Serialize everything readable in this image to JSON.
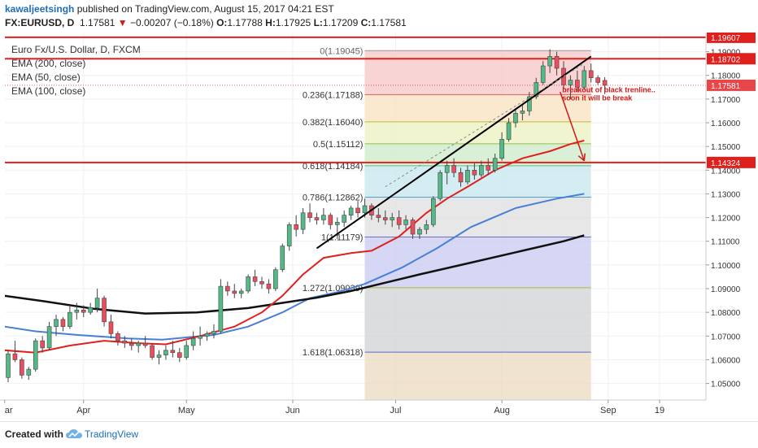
{
  "header": {
    "user": "kawaljeetsingh",
    "published_text": "published on TradingView.com, August 15, 2017 04:21 EST",
    "symbol": "FX:EURUSD, D",
    "last": "1.17581",
    "change_arrow": "▼",
    "change": "−0.00207 (−0.18%)",
    "o_label": "O:",
    "o_value": "1.17788",
    "h_label": "H:",
    "h_value": "1.17925",
    "l_label": "L:",
    "l_value": "1.17209",
    "c_label": "C:",
    "c_value": "1.17581"
  },
  "legend": {
    "title": "Euro Fx/U.S. Dollar, D, FXCM",
    "ema200": "EMA (200, close)",
    "ema50": "EMA (50, close)",
    "ema100": "EMA (100, close)"
  },
  "footer": {
    "created_with": "Created with",
    "brand": "TradingView",
    "logo_icon": "tradingview-cloud-icon"
  },
  "colors": {
    "candle_up": "#53b987",
    "candle_down": "#eb4d5c",
    "hline": "#e0201c",
    "ema_red": "#e0201c",
    "ema_blue": "#4a7fd6",
    "ema_black": "#111111",
    "annotation": "#d01919"
  },
  "chart_data": {
    "type": "candlestick",
    "title": "Euro Fx/U.S. Dollar, D, FXCM",
    "y_range": [
      1.043,
      1.195
    ],
    "y_ticks": [
      "1.19000",
      "1.18000",
      "1.17000",
      "1.16000",
      "1.15000",
      "1.14000",
      "1.13000",
      "1.12000",
      "1.11000",
      "1.10000",
      "1.09000",
      "1.08000",
      "1.07000",
      "1.06000",
      "1.05000"
    ],
    "x_labels": [
      {
        "label": "ar",
        "day": -1
      },
      {
        "label": "Apr",
        "day": 22
      },
      {
        "label": "May",
        "day": 52
      },
      {
        "label": "Jun",
        "day": 83
      },
      {
        "label": "Jul",
        "day": 113
      },
      {
        "label": "Aug",
        "day": 144
      },
      {
        "label": "Sep",
        "day": 175
      },
      {
        "label": "19",
        "day": 190
      }
    ],
    "price_lines": [
      {
        "value": 1.19607,
        "label": "1.19607"
      },
      {
        "value": 1.18702,
        "label": "1.18702"
      },
      {
        "value": 1.14324,
        "label": "1.14324"
      }
    ],
    "last_price": {
      "value": 1.17581,
      "label": "1.17581"
    },
    "fib": {
      "start_day": 104,
      "end_day": 170,
      "levels": [
        {
          "ratio": "0",
          "value": 1.19045,
          "label": "0(1.19045)"
        },
        {
          "ratio": "0.236",
          "value": 1.17188,
          "label": "0.236(1.17188)"
        },
        {
          "ratio": "0.382",
          "value": 1.1604,
          "label": "0.382(1.16040)"
        },
        {
          "ratio": "0.5",
          "value": 1.15112,
          "label": "0.5(1.15112)"
        },
        {
          "ratio": "0.618",
          "value": 1.14184,
          "label": "0.618(1.14184)"
        },
        {
          "ratio": "0.786",
          "value": 1.12862,
          "label": "0.786(1.12862)"
        },
        {
          "ratio": "1",
          "value": 1.11179,
          "label": "1(1.11179)"
        },
        {
          "ratio": "1.272",
          "value": 1.09039,
          "label": "1.272(1.09039)"
        },
        {
          "ratio": "1.618",
          "value": 1.06318,
          "label": "1.618(1.06318)"
        }
      ],
      "bottom_value": 1.043
    },
    "ohlc": [
      [
        1.0525,
        1.064,
        1.0505,
        1.0625
      ],
      [
        1.0625,
        1.068,
        1.059,
        1.06
      ],
      [
        1.06,
        1.061,
        1.052,
        1.0535
      ],
      [
        1.0535,
        1.057,
        1.0515,
        1.056
      ],
      [
        1.056,
        1.069,
        1.055,
        1.068
      ],
      [
        1.068,
        1.07,
        1.063,
        1.065
      ],
      [
        1.065,
        1.076,
        1.064,
        1.074
      ],
      [
        1.074,
        1.079,
        1.07,
        1.077
      ],
      [
        1.077,
        1.078,
        1.072,
        1.074
      ],
      [
        1.074,
        1.083,
        1.073,
        1.08
      ],
      [
        1.08,
        1.084,
        1.077,
        1.081
      ],
      [
        1.081,
        1.083,
        1.078,
        1.08
      ],
      [
        1.08,
        1.084,
        1.079,
        1.082
      ],
      [
        1.082,
        1.09,
        1.08,
        1.086
      ],
      [
        1.086,
        1.087,
        1.074,
        1.076
      ],
      [
        1.076,
        1.079,
        1.069,
        1.071
      ],
      [
        1.071,
        1.072,
        1.066,
        1.068
      ],
      [
        1.068,
        1.07,
        1.065,
        1.067
      ],
      [
        1.067,
        1.069,
        1.064,
        1.066
      ],
      [
        1.066,
        1.068,
        1.063,
        1.067
      ],
      [
        1.067,
        1.07,
        1.065,
        1.066
      ],
      [
        1.066,
        1.067,
        1.06,
        1.061
      ],
      [
        1.061,
        1.064,
        1.058,
        1.062
      ],
      [
        1.062,
        1.066,
        1.06,
        1.064
      ],
      [
        1.064,
        1.068,
        1.061,
        1.063
      ],
      [
        1.063,
        1.065,
        1.059,
        1.061
      ],
      [
        1.061,
        1.068,
        1.06,
        1.066
      ],
      [
        1.066,
        1.072,
        1.064,
        1.069
      ],
      [
        1.069,
        1.074,
        1.066,
        1.07
      ],
      [
        1.07,
        1.072,
        1.068,
        1.071
      ],
      [
        1.071,
        1.075,
        1.069,
        1.072
      ],
      [
        1.072,
        1.094,
        1.071,
        1.091
      ],
      [
        1.091,
        1.093,
        1.087,
        1.089
      ],
      [
        1.089,
        1.092,
        1.086,
        1.088
      ],
      [
        1.088,
        1.09,
        1.086,
        1.089
      ],
      [
        1.089,
        1.096,
        1.088,
        1.095
      ],
      [
        1.095,
        1.098,
        1.091,
        1.093
      ],
      [
        1.093,
        1.095,
        1.09,
        1.092
      ],
      [
        1.092,
        1.094,
        1.088,
        1.09
      ],
      [
        1.09,
        1.099,
        1.089,
        1.098
      ],
      [
        1.098,
        1.109,
        1.097,
        1.108
      ],
      [
        1.108,
        1.118,
        1.106,
        1.117
      ],
      [
        1.117,
        1.121,
        1.112,
        1.115
      ],
      [
        1.115,
        1.124,
        1.113,
        1.122
      ],
      [
        1.122,
        1.126,
        1.118,
        1.12
      ],
      [
        1.12,
        1.122,
        1.117,
        1.119
      ],
      [
        1.119,
        1.124,
        1.117,
        1.121
      ],
      [
        1.121,
        1.122,
        1.115,
        1.117
      ],
      [
        1.117,
        1.12,
        1.111,
        1.118
      ],
      [
        1.118,
        1.123,
        1.116,
        1.121
      ],
      [
        1.121,
        1.125,
        1.119,
        1.124
      ],
      [
        1.124,
        1.127,
        1.12,
        1.122
      ],
      [
        1.122,
        1.128,
        1.12,
        1.125
      ],
      [
        1.125,
        1.126,
        1.119,
        1.121
      ],
      [
        1.121,
        1.124,
        1.118,
        1.12
      ],
      [
        1.12,
        1.123,
        1.117,
        1.119
      ],
      [
        1.119,
        1.122,
        1.116,
        1.12
      ],
      [
        1.12,
        1.123,
        1.115,
        1.117
      ],
      [
        1.117,
        1.121,
        1.115,
        1.119
      ],
      [
        1.119,
        1.12,
        1.111,
        1.113
      ],
      [
        1.113,
        1.116,
        1.111,
        1.115
      ],
      [
        1.115,
        1.119,
        1.113,
        1.117
      ],
      [
        1.117,
        1.129,
        1.116,
        1.128
      ],
      [
        1.128,
        1.14,
        1.127,
        1.139
      ],
      [
        1.139,
        1.144,
        1.134,
        1.142
      ],
      [
        1.142,
        1.145,
        1.137,
        1.139
      ],
      [
        1.139,
        1.141,
        1.133,
        1.135
      ],
      [
        1.135,
        1.142,
        1.134,
        1.14
      ],
      [
        1.14,
        1.143,
        1.136,
        1.138
      ],
      [
        1.138,
        1.144,
        1.137,
        1.142
      ],
      [
        1.142,
        1.145,
        1.138,
        1.14
      ],
      [
        1.14,
        1.147,
        1.139,
        1.145
      ],
      [
        1.145,
        1.156,
        1.144,
        1.153
      ],
      [
        1.153,
        1.162,
        1.152,
        1.16
      ],
      [
        1.16,
        1.166,
        1.158,
        1.164
      ],
      [
        1.164,
        1.168,
        1.161,
        1.165
      ],
      [
        1.165,
        1.173,
        1.163,
        1.171
      ],
      [
        1.171,
        1.179,
        1.17,
        1.177
      ],
      [
        1.177,
        1.186,
        1.176,
        1.184
      ],
      [
        1.184,
        1.191,
        1.181,
        1.188
      ],
      [
        1.188,
        1.19,
        1.18,
        1.183
      ],
      [
        1.183,
        1.186,
        1.174,
        1.176
      ],
      [
        1.176,
        1.18,
        1.17,
        1.178
      ],
      [
        1.178,
        1.182,
        1.173,
        1.175
      ],
      [
        1.175,
        1.184,
        1.174,
        1.182
      ],
      [
        1.182,
        1.185,
        1.177,
        1.179
      ],
      [
        1.179,
        1.18,
        1.176,
        1.177
      ],
      [
        1.17788,
        1.17925,
        1.17209,
        1.17581
      ]
    ],
    "ema200": [
      [
        -1,
        1.087
      ],
      [
        10,
        1.0848
      ],
      [
        25,
        1.0815
      ],
      [
        40,
        1.0795
      ],
      [
        55,
        1.08
      ],
      [
        70,
        1.0818
      ],
      [
        80,
        1.084
      ],
      [
        90,
        1.0862
      ],
      [
        100,
        1.089
      ],
      [
        110,
        1.0925
      ],
      [
        120,
        1.096
      ],
      [
        135,
        1.101
      ],
      [
        150,
        1.106
      ],
      [
        162,
        1.11
      ],
      [
        168,
        1.1125
      ]
    ],
    "ema100": [
      [
        -1,
        1.074
      ],
      [
        8,
        1.072
      ],
      [
        20,
        1.0705
      ],
      [
        35,
        1.069
      ],
      [
        45,
        1.0685
      ],
      [
        60,
        1.0705
      ],
      [
        70,
        1.074
      ],
      [
        80,
        1.08
      ],
      [
        88,
        1.086
      ],
      [
        96,
        1.0885
      ],
      [
        104,
        1.092
      ],
      [
        115,
        1.099
      ],
      [
        125,
        1.107
      ],
      [
        135,
        1.116
      ],
      [
        148,
        1.124
      ],
      [
        160,
        1.128
      ],
      [
        168,
        1.13
      ]
    ],
    "ema50": [
      [
        -1,
        1.064
      ],
      [
        8,
        1.063
      ],
      [
        18,
        1.066
      ],
      [
        28,
        1.068
      ],
      [
        38,
        1.067
      ],
      [
        46,
        1.0665
      ],
      [
        56,
        1.07
      ],
      [
        66,
        1.074
      ],
      [
        74,
        1.08
      ],
      [
        80,
        1.087
      ],
      [
        86,
        1.096
      ],
      [
        92,
        1.103
      ],
      [
        100,
        1.105
      ],
      [
        106,
        1.106
      ],
      [
        114,
        1.112
      ],
      [
        122,
        1.122
      ],
      [
        128,
        1.128
      ],
      [
        134,
        1.133
      ],
      [
        142,
        1.14
      ],
      [
        150,
        1.145
      ],
      [
        158,
        1.148
      ],
      [
        164,
        1.151
      ],
      [
        168,
        1.1525
      ]
    ],
    "trendline": [
      [
        90,
        1.107
      ],
      [
        170,
        1.188
      ]
    ],
    "trendline_dashed": [
      [
        110,
        1.133
      ],
      [
        168,
        1.185
      ]
    ],
    "arrow": [
      [
        161,
        1.173
      ],
      [
        168,
        1.144
      ]
    ],
    "annotation": {
      "line1": "breakout of black trenline..",
      "line2": "soon it will be break"
    }
  }
}
